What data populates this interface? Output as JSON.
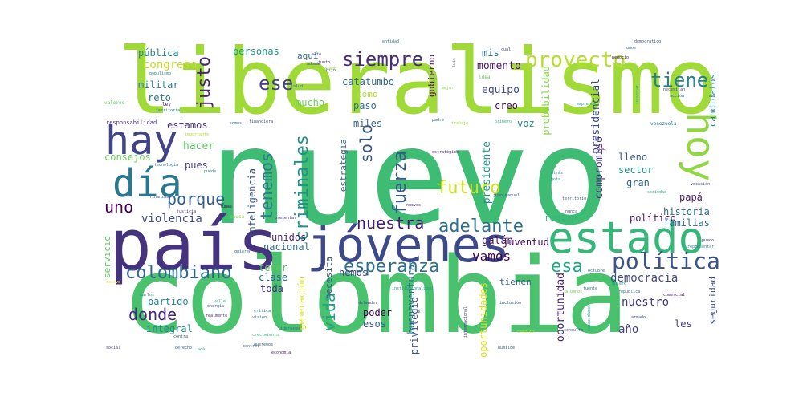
{
  "words": [
    {
      "text": "nuevo",
      "color": "#3fbc73"
    },
    {
      "text": "liberalismo",
      "color": "#a0da39"
    },
    {
      "text": "colombia",
      "color": "#4ac16d"
    },
    {
      "text": "país",
      "color": "#46337e"
    },
    {
      "text": "jóvenes",
      "color": "#3e4989"
    },
    {
      "text": "estado",
      "color": "#35b779"
    },
    {
      "text": "hay",
      "color": "#414487"
    },
    {
      "text": "día",
      "color": "#2a788e"
    },
    {
      "text": "hoy",
      "color": "#90d743"
    },
    {
      "text": "proyecto",
      "color": "#b5de2b"
    },
    {
      "text": "tiene",
      "color": "#26828e"
    },
    {
      "text": "siempre",
      "color": "#472d7b"
    },
    {
      "text": "justo",
      "color": "#482475"
    },
    {
      "text": "ese",
      "color": "#433e85"
    },
    {
      "text": "política",
      "color": "#3b528b"
    },
    {
      "text": "colombiano",
      "color": "#31688e"
    },
    {
      "text": "esperanza",
      "color": "#2c728e"
    },
    {
      "text": "adelante",
      "color": "#2d708e"
    },
    {
      "text": "nuestra",
      "color": "#481f70"
    },
    {
      "text": "fuerza",
      "color": "#365c8d"
    },
    {
      "text": "futuro",
      "color": "#d0e11c"
    },
    {
      "text": "criminales",
      "color": "#21918c"
    },
    {
      "text": "porque",
      "color": "#355f8d"
    },
    {
      "text": "tenemos",
      "color": "#287d8e"
    },
    {
      "text": "uno",
      "color": "#440154"
    },
    {
      "text": "donde",
      "color": "#482878"
    },
    {
      "text": "vida",
      "color": "#20a386"
    },
    {
      "text": "esa",
      "color": "#22a884"
    },
    {
      "text": "vamos",
      "color": "#440154"
    },
    {
      "text": "solo",
      "color": "#38588c"
    },
    {
      "text": "democracia",
      "color": "#3e4a89"
    },
    {
      "text": "nuestro",
      "color": "#453781"
    },
    {
      "text": "congreso",
      "color": "#c2df23"
    },
    {
      "text": "pública",
      "color": "#277f8e"
    },
    {
      "text": "personas",
      "color": "#1f9e89"
    },
    {
      "text": "militar",
      "color": "#29798e"
    },
    {
      "text": "reto",
      "color": "#2a778e"
    },
    {
      "text": "estamos",
      "color": "#463480"
    },
    {
      "text": "hacer",
      "color": "#5ec962"
    },
    {
      "text": "pues",
      "color": "#424086"
    },
    {
      "text": "consejos",
      "color": "#6ccd5a"
    },
    {
      "text": "violencia",
      "color": "#3d4e8a"
    },
    {
      "text": "servicio",
      "color": "#5ec962"
    },
    {
      "text": "partido",
      "color": "#25858e"
    },
    {
      "text": "integral",
      "color": "#24878e"
    },
    {
      "text": "unidos",
      "color": "#482677"
    },
    {
      "text": "nacional",
      "color": "#2f6c8e"
    },
    {
      "text": "tener",
      "color": "#5ec962"
    },
    {
      "text": "clase",
      "color": "#33638d"
    },
    {
      "text": "toda",
      "color": "#46327e"
    },
    {
      "text": "hemos",
      "color": "#3f4788"
    },
    {
      "text": "poder",
      "color": "#440154"
    },
    {
      "text": "esos",
      "color": "#38598c"
    },
    {
      "text": "inteligencia",
      "color": "#3b528b"
    },
    {
      "text": "mucho",
      "color": "#6ccd5a"
    },
    {
      "text": "aquí",
      "color": "#2e6f8e"
    },
    {
      "text": "paso",
      "color": "#2c738e"
    },
    {
      "text": "miles",
      "color": "#32658e"
    },
    {
      "text": "catatumbo",
      "color": "#31668e"
    },
    {
      "text": "cómo",
      "color": "#b5de2b"
    },
    {
      "text": "estrategia",
      "color": "#355e8d"
    },
    {
      "text": "necesita",
      "color": "#39568c"
    },
    {
      "text": "generación",
      "color": "#d8e219"
    },
    {
      "text": "buenaventura",
      "color": "#2d718e"
    },
    {
      "text": "privilegio",
      "color": "#3a548c"
    },
    {
      "text": "oportunidades",
      "color": "#dde318"
    },
    {
      "text": "oportunidad",
      "color": "#481c6e"
    },
    {
      "text": "gobierno",
      "color": "#471063"
    },
    {
      "text": "momento",
      "color": "#481668"
    },
    {
      "text": "mis",
      "color": "#2d708e"
    },
    {
      "text": "equipo",
      "color": "#3e4c8a"
    },
    {
      "text": "creo",
      "color": "#440154"
    },
    {
      "text": "voz",
      "color": "#24868e"
    },
    {
      "text": "presidente",
      "color": "#1f9a8a"
    },
    {
      "text": "presidencial",
      "color": "#3f4889"
    },
    {
      "text": "probabilidad",
      "color": "#84d44b"
    },
    {
      "text": "compromiso",
      "color": "#46307e"
    },
    {
      "text": "lleno",
      "color": "#38598c"
    },
    {
      "text": "sector",
      "color": "#21918c"
    },
    {
      "text": "gran",
      "color": "#31688e"
    },
    {
      "text": "papá",
      "color": "#481a6c"
    },
    {
      "text": "galán",
      "color": "#481b6d"
    },
    {
      "text": "región",
      "color": "#35b779"
    },
    {
      "text": "político",
      "color": "#481467"
    },
    {
      "text": "historia",
      "color": "#2e6e8e"
    },
    {
      "text": "familias",
      "color": "#306a8e"
    },
    {
      "text": "juventud",
      "color": "#471164"
    },
    {
      "text": "tienen",
      "color": "#38588c"
    },
    {
      "text": "año",
      "color": "#433e85"
    },
    {
      "text": "les",
      "color": "#453882"
    },
    {
      "text": "seguridad",
      "color": "#3e4c8a"
    },
    {
      "text": "candidatos",
      "color": "#2a778e"
    },
    {
      "text": "responsabilidad",
      "color": "#472d7b"
    },
    {
      "text": "valores",
      "color": "#5ec962"
    },
    {
      "text": "ley",
      "color": "#471365"
    },
    {
      "text": "territorial",
      "color": "#29798e"
    },
    {
      "text": "populismo",
      "color": "#25858e"
    },
    {
      "text": "venezuela",
      "color": "#2a788e"
    },
    {
      "text": "emprender",
      "color": "#20a486"
    },
    {
      "text": "necesitan",
      "color": "#3d4d8a"
    },
    {
      "text": "acción",
      "color": "#2c728e"
    },
    {
      "text": "salud",
      "color": "#2a778e"
    },
    {
      "text": "mejor",
      "color": "#8bd646"
    },
    {
      "text": "idea",
      "color": "#6ccd5a"
    },
    {
      "text": "luis",
      "color": "#3b528b"
    },
    {
      "text": "cual",
      "color": "#3f4889"
    },
    {
      "text": "trabajo",
      "color": "#90d743"
    },
    {
      "text": "primero",
      "color": "#2fb47c"
    },
    {
      "text": "padre",
      "color": "#355e8d"
    },
    {
      "text": "negocio",
      "color": "#440154"
    },
    {
      "text": "financiera",
      "color": "#3b518b"
    },
    {
      "text": "somos",
      "color": "#32648e"
    },
    {
      "text": "estratégico",
      "color": "#481b6d"
    },
    {
      "text": "juan manuel",
      "color": "#3d4e8a"
    },
    {
      "text": "paz",
      "color": "#440154"
    },
    {
      "text": "atrás",
      "color": "#2d718e"
    },
    {
      "text": "gota",
      "color": "#1f968b"
    },
    {
      "text": "sociedad",
      "color": "#22a884"
    },
    {
      "text": "vocación",
      "color": "#3e4a89"
    },
    {
      "text": "finanzas",
      "color": "#375a8c"
    },
    {
      "text": "justicia",
      "color": "#472f7d"
    },
    {
      "text": "funes",
      "color": "#440154"
    },
    {
      "text": "cauca",
      "color": "#8bd646"
    },
    {
      "text": "presentar",
      "color": "#46307e"
    },
    {
      "text": "territorio",
      "color": "#32648e"
    },
    {
      "text": "nunca",
      "color": "#3b528b"
    },
    {
      "text": "puede",
      "color": "#2c738e"
    },
    {
      "text": "octubre",
      "color": "#31688e"
    },
    {
      "text": "república",
      "color": "#2d718e"
    },
    {
      "text": "inclusión",
      "color": "#375b8d"
    },
    {
      "text": "internacional",
      "color": "#46327e"
    },
    {
      "text": "crédito",
      "color": "#c2df23"
    },
    {
      "text": "humilde",
      "color": "#38598c"
    },
    {
      "text": "defender",
      "color": "#3f4788"
    },
    {
      "text": "institucionalidad",
      "color": "#1f988b"
    },
    {
      "text": "liderazgo",
      "color": "#2d708e"
    },
    {
      "text": "crecimiento",
      "color": "#35b779"
    },
    {
      "text": "economía",
      "color": "#481769"
    },
    {
      "text": "derecho",
      "color": "#375a8c"
    },
    {
      "text": "control",
      "color": "#306a8e"
    },
    {
      "text": "social",
      "color": "#3f4788"
    },
    {
      "text": "contra",
      "color": "#32648e"
    },
    {
      "text": "acá",
      "color": "#29af7f"
    },
    {
      "text": "realmente",
      "color": "#482878"
    },
    {
      "text": "crítica",
      "color": "#31688e"
    },
    {
      "text": "visión",
      "color": "#2e6e8e"
    },
    {
      "text": "energía",
      "color": "#3b528b"
    },
    {
      "text": "carlos",
      "color": "#25858e"
    },
    {
      "text": "tecnología",
      "color": "#2a788e"
    },
    {
      "text": "importante",
      "color": "#b5de2b"
    },
    {
      "text": "activo",
      "color": "#fde725"
    },
    {
      "text": "valle",
      "color": "#22a884"
    },
    {
      "text": "quieren",
      "color": "#2e6f8e"
    },
    {
      "text": "queremos",
      "color": "#38598c"
    },
    {
      "text": "armado",
      "color": "#38588c"
    },
    {
      "text": "consulta",
      "color": "#3e4a89"
    },
    {
      "text": "capacidades",
      "color": "#1f9e89"
    },
    {
      "text": "alumnos",
      "color": "#6ccd5a"
    },
    {
      "text": "comercial",
      "color": "#471365"
    },
    {
      "text": "fuente",
      "color": "#2a788e"
    },
    {
      "text": "quiero",
      "color": "#21918c"
    },
    {
      "text": "puedo",
      "color": "#46307e"
    },
    {
      "text": "representar",
      "color": "#26828e"
    },
    {
      "text": "convocar",
      "color": "#29af7f"
    },
    {
      "text": "democrático",
      "color": "#3b518b"
    },
    {
      "text": "unos",
      "color": "#2e6e8e"
    },
    {
      "text": "además",
      "color": "#433e85"
    },
    {
      "text": "hijo",
      "color": "#3a548c"
    },
    {
      "text": "entidad",
      "color": "#2c728e"
    },
    {
      "text": "alto",
      "color": "#424086"
    },
    {
      "text": "mercado",
      "color": "#a0da39"
    },
    {
      "text": "junto",
      "color": "#482173"
    },
    {
      "text": "nuevos",
      "color": "#472d7b"
    }
  ]
}
